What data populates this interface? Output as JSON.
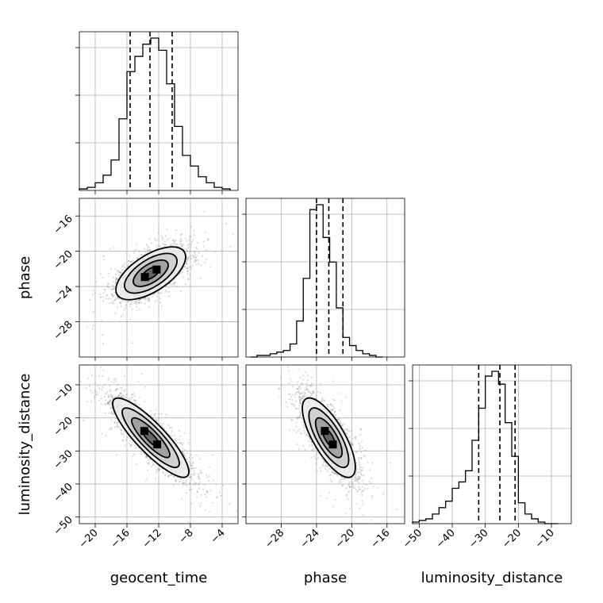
{
  "chart_data": {
    "type": "corner",
    "parameters": [
      "geocent_time",
      "phase",
      "luminosity_distance"
    ],
    "ranges": {
      "geocent_time": [
        -22,
        -2
      ],
      "phase": [
        -32,
        -14
      ],
      "luminosity_distance": [
        -52,
        -4
      ]
    },
    "ticks": {
      "geocent_time": [
        -20,
        -16,
        -12,
        -8,
        -4
      ],
      "phase": [
        -28,
        -24,
        -20,
        -16
      ],
      "luminosity_distance": [
        -50,
        -40,
        -30,
        -20,
        -10
      ]
    },
    "grid": true,
    "histograms": {
      "geocent_time": {
        "edges": [
          -22,
          -21,
          -20,
          -19,
          -18,
          -17,
          -16,
          -15,
          -14,
          -13,
          -12,
          -11,
          -10,
          -9,
          -8,
          -7,
          -6,
          -5,
          -4,
          -3
        ],
        "counts": [
          0.01,
          0.02,
          0.05,
          0.1,
          0.2,
          0.47,
          0.78,
          0.88,
          0.96,
          1.0,
          0.92,
          0.7,
          0.42,
          0.23,
          0.16,
          0.09,
          0.05,
          0.02,
          0.01
        ],
        "quantiles": [
          -15.6,
          -13.1,
          -10.3
        ]
      },
      "phase": {
        "edges": [
          -31.5,
          -30.75,
          -30,
          -29.25,
          -28.5,
          -27.75,
          -27,
          -26.25,
          -25.5,
          -24.75,
          -24,
          -23.25,
          -22.5,
          -21.75,
          -21,
          -20.25,
          -19.5,
          -18.75,
          -18,
          -17.25,
          -16.5
        ],
        "counts": [
          0.0,
          0.01,
          0.01,
          0.02,
          0.03,
          0.04,
          0.08,
          0.22,
          0.48,
          0.9,
          0.93,
          0.73,
          0.58,
          0.3,
          0.12,
          0.07,
          0.04,
          0.02,
          0.01,
          0.0
        ],
        "quantiles": [
          -24.0,
          -22.6,
          -21.0
        ]
      },
      "luminosity_distance": {
        "edges": [
          -52,
          -50,
          -48,
          -46,
          -44,
          -42,
          -40,
          -38,
          -36,
          -34,
          -32,
          -30,
          -28,
          -26,
          -24,
          -22,
          -20,
          -18,
          -16,
          -14,
          -12,
          -10,
          -8
        ],
        "counts": [
          0.01,
          0.02,
          0.03,
          0.06,
          0.1,
          0.14,
          0.22,
          0.26,
          0.33,
          0.52,
          0.72,
          0.92,
          0.95,
          0.87,
          0.63,
          0.42,
          0.13,
          0.06,
          0.03,
          0.01,
          0.0,
          0.0
        ],
        "quantiles": [
          -32.0,
          -25.6,
          -21.0
        ]
      }
    },
    "pairs": [
      {
        "x": "geocent_time",
        "y": "phase",
        "mean": [
          -13,
          -22.5
        ],
        "sd": [
          2.2,
          1.5
        ],
        "rho": 0.62
      },
      {
        "x": "geocent_time",
        "y": "luminosity_distance",
        "mean": [
          -13,
          -26
        ],
        "sd": [
          2.4,
          6
        ],
        "rho": -0.86
      },
      {
        "x": "phase",
        "y": "luminosity_distance",
        "mean": [
          -22.6,
          -26
        ],
        "sd": [
          1.5,
          6
        ],
        "rho": -0.74
      }
    ],
    "contour_levels_sigma": [
      0.5,
      1.0,
      1.5,
      2.0
    ]
  }
}
